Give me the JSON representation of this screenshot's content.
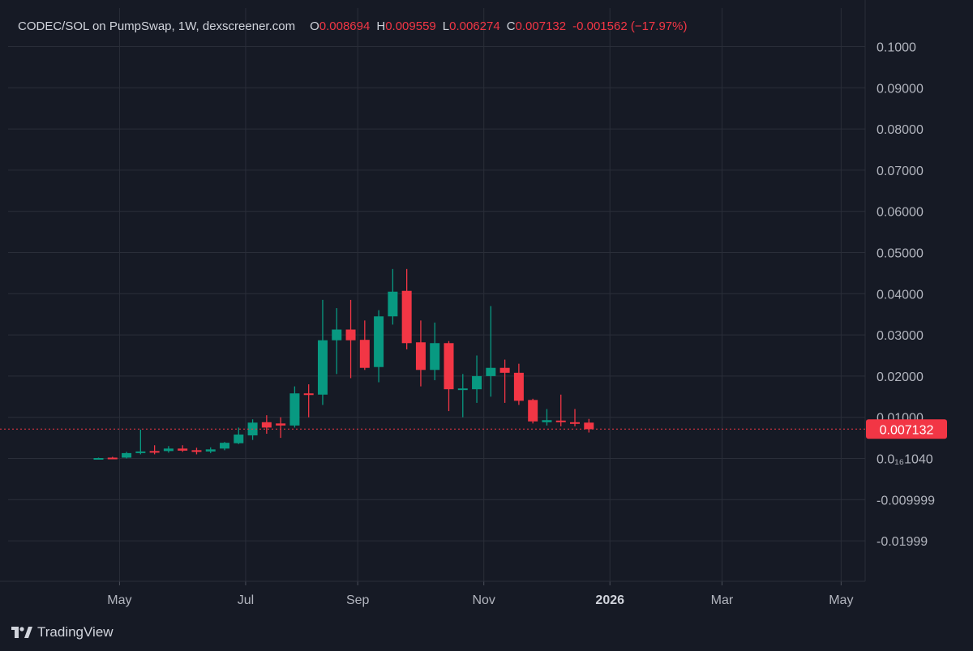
{
  "header": {
    "symbol_line": "CODEC/SOL on PumpSwap, 1W, dexscreener.com",
    "open_label": "O",
    "open_value": "0.008694",
    "high_label": "H",
    "high_value": "0.009559",
    "low_label": "L",
    "low_value": "0.006274",
    "close_label": "C",
    "close_value": "0.007132",
    "change": "-0.001562 (−17.97%)"
  },
  "brand": {
    "name": "TradingView"
  },
  "colors": {
    "up": "#089981",
    "down": "#f23645",
    "background": "#161a25",
    "grid": "#2a2e39"
  },
  "chart_data": {
    "type": "candlestick",
    "title": "CODEC/SOL on PumpSwap, 1W, dexscreener.com",
    "xlabel": "",
    "ylabel": "",
    "ylim": [
      -0.026,
      0.104
    ],
    "y_ticks": [
      {
        "value": 0.1,
        "label": "0.1000"
      },
      {
        "value": 0.09,
        "label": "0.09000"
      },
      {
        "value": 0.08,
        "label": "0.08000"
      },
      {
        "value": 0.07,
        "label": "0.07000"
      },
      {
        "value": 0.06,
        "label": "0.06000"
      },
      {
        "value": 0.05,
        "label": "0.05000"
      },
      {
        "value": 0.04,
        "label": "0.04000"
      },
      {
        "value": 0.03,
        "label": "0.03000"
      },
      {
        "value": 0.02,
        "label": "0.02000"
      },
      {
        "value": 0.01,
        "label": "0.01000"
      },
      {
        "value": 0.0,
        "label": "0.0₁₆1040"
      },
      {
        "value": -0.01,
        "label": "-0.009999"
      },
      {
        "value": -0.02,
        "label": "-0.01999"
      }
    ],
    "x_ticks": [
      {
        "index": 1.5,
        "label": "May",
        "bold": false
      },
      {
        "index": 10.5,
        "label": "Jul",
        "bold": false
      },
      {
        "index": 18.5,
        "label": "Sep",
        "bold": false
      },
      {
        "index": 27.5,
        "label": "Nov",
        "bold": false
      },
      {
        "index": 36.5,
        "label": "2026",
        "bold": true
      },
      {
        "index": 44.5,
        "label": "Mar",
        "bold": false
      },
      {
        "index": 53,
        "label": "May",
        "bold": false
      }
    ],
    "last_price": {
      "value": 0.007132,
      "label": "0.007132"
    },
    "grid": true,
    "candles": [
      {
        "o": 0.0,
        "h": 0.0002,
        "l": -0.0002,
        "c": 0.0001
      },
      {
        "o": 0.0002,
        "h": 0.0004,
        "l": 0.0,
        "c": 0.0001
      },
      {
        "o": 0.0002,
        "h": 0.0016,
        "l": 0.0,
        "c": 0.0013
      },
      {
        "o": 0.0015,
        "h": 0.007,
        "l": 0.001,
        "c": 0.0017
      },
      {
        "o": 0.0018,
        "h": 0.0032,
        "l": 0.001,
        "c": 0.0016
      },
      {
        "o": 0.0018,
        "h": 0.003,
        "l": 0.0014,
        "c": 0.0024
      },
      {
        "o": 0.0024,
        "h": 0.0032,
        "l": 0.0016,
        "c": 0.0019
      },
      {
        "o": 0.002,
        "h": 0.0026,
        "l": 0.001,
        "c": 0.0016
      },
      {
        "o": 0.0017,
        "h": 0.0027,
        "l": 0.0013,
        "c": 0.0022
      },
      {
        "o": 0.0024,
        "h": 0.004,
        "l": 0.002,
        "c": 0.0038
      },
      {
        "o": 0.0037,
        "h": 0.0075,
        "l": 0.0035,
        "c": 0.0058
      },
      {
        "o": 0.0056,
        "h": 0.0095,
        "l": 0.0045,
        "c": 0.0087
      },
      {
        "o": 0.0088,
        "h": 0.0105,
        "l": 0.006,
        "c": 0.0075
      },
      {
        "o": 0.0085,
        "h": 0.01,
        "l": 0.005,
        "c": 0.008
      },
      {
        "o": 0.008,
        "h": 0.0175,
        "l": 0.0075,
        "c": 0.0158
      },
      {
        "o": 0.0158,
        "h": 0.018,
        "l": 0.01,
        "c": 0.0157
      },
      {
        "o": 0.0155,
        "h": 0.0385,
        "l": 0.013,
        "c": 0.0287
      },
      {
        "o": 0.0287,
        "h": 0.0365,
        "l": 0.0205,
        "c": 0.0313
      },
      {
        "o": 0.0313,
        "h": 0.0385,
        "l": 0.0195,
        "c": 0.0287
      },
      {
        "o": 0.0288,
        "h": 0.0335,
        "l": 0.0215,
        "c": 0.022
      },
      {
        "o": 0.0222,
        "h": 0.036,
        "l": 0.0185,
        "c": 0.0345
      },
      {
        "o": 0.0345,
        "h": 0.046,
        "l": 0.0325,
        "c": 0.0405
      },
      {
        "o": 0.0407,
        "h": 0.046,
        "l": 0.0265,
        "c": 0.028
      },
      {
        "o": 0.0282,
        "h": 0.0335,
        "l": 0.0175,
        "c": 0.0215
      },
      {
        "o": 0.0215,
        "h": 0.033,
        "l": 0.019,
        "c": 0.028
      },
      {
        "o": 0.028,
        "h": 0.0285,
        "l": 0.0115,
        "c": 0.0168
      },
      {
        "o": 0.017,
        "h": 0.0205,
        "l": 0.01,
        "c": 0.017
      },
      {
        "o": 0.0168,
        "h": 0.025,
        "l": 0.0135,
        "c": 0.02
      },
      {
        "o": 0.02,
        "h": 0.037,
        "l": 0.015,
        "c": 0.022
      },
      {
        "o": 0.022,
        "h": 0.024,
        "l": 0.0135,
        "c": 0.0208
      },
      {
        "o": 0.0208,
        "h": 0.023,
        "l": 0.013,
        "c": 0.014
      },
      {
        "o": 0.0142,
        "h": 0.0145,
        "l": 0.0085,
        "c": 0.009
      },
      {
        "o": 0.0088,
        "h": 0.012,
        "l": 0.008,
        "c": 0.0093
      },
      {
        "o": 0.0092,
        "h": 0.0155,
        "l": 0.0078,
        "c": 0.0089
      },
      {
        "o": 0.0088,
        "h": 0.012,
        "l": 0.0078,
        "c": 0.0087
      },
      {
        "o": 0.0087,
        "h": 0.0096,
        "l": 0.0063,
        "c": 0.0071
      }
    ]
  }
}
